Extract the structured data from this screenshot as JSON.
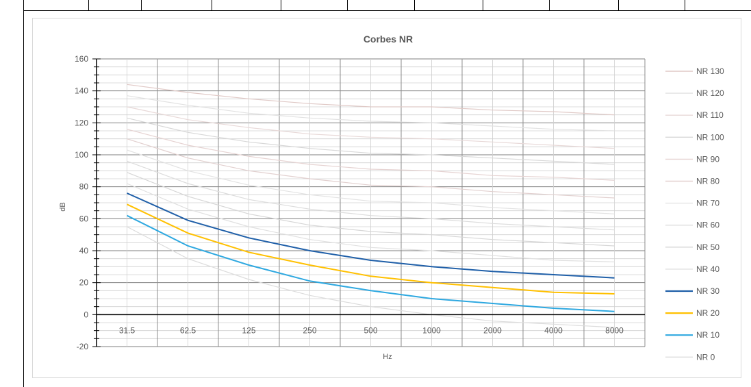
{
  "chart_data": {
    "type": "line",
    "title": "Corbes NR",
    "xlabel": "Hz",
    "ylabel": "dB",
    "categories": [
      "31.5",
      "62.5",
      "125",
      "250",
      "500",
      "1000",
      "2000",
      "4000",
      "8000"
    ],
    "ylim": [
      -20,
      160
    ],
    "yticks": [
      -20,
      0,
      20,
      40,
      60,
      80,
      100,
      120,
      140,
      160
    ],
    "grid": true,
    "legend_position": "right",
    "series": [
      {
        "name": "NR 130",
        "color": "#e0c9c6",
        "values": [
          144,
          139,
          135,
          132,
          130,
          130,
          128,
          127,
          125
        ]
      },
      {
        "name": "NR 120",
        "color": "#e2e2e2",
        "values": [
          137,
          131,
          126,
          123,
          121,
          120,
          118,
          116,
          115
        ]
      },
      {
        "name": "NR 110",
        "color": "#e8d9d8",
        "values": [
          130,
          122,
          117,
          113,
          111,
          110,
          108,
          106,
          104
        ]
      },
      {
        "name": "NR 100",
        "color": "#d8d8d8",
        "values": [
          123,
          114,
          108,
          104,
          101,
          100,
          98,
          96,
          94
        ]
      },
      {
        "name": "NR 90",
        "color": "#e6d3d2",
        "values": [
          116,
          106,
          99,
          94,
          91,
          90,
          87,
          86,
          84
        ]
      },
      {
        "name": "NR 80",
        "color": "#e2d0cf",
        "values": [
          110,
          98,
          90,
          85,
          81,
          80,
          77,
          75,
          73
        ]
      },
      {
        "name": "NR 70",
        "color": "#e3e3e3",
        "values": [
          103,
          90,
          81,
          75,
          71,
          70,
          67,
          65,
          63
        ]
      },
      {
        "name": "NR 60",
        "color": "#dcdcdc",
        "values": [
          96,
          82,
          72,
          66,
          62,
          60,
          57,
          55,
          53
        ]
      },
      {
        "name": "NR 50",
        "color": "#d6d6d6",
        "values": [
          89,
          74,
          63,
          56,
          52,
          50,
          47,
          45,
          43
        ]
      },
      {
        "name": "NR 40",
        "color": "#e0e0e0",
        "values": [
          82,
          66,
          55,
          47,
          42,
          40,
          37,
          34,
          33
        ]
      },
      {
        "name": "NR 30",
        "color": "#1f5fa8",
        "values": [
          76,
          59,
          48,
          40,
          34,
          30,
          27,
          25,
          23
        ]
      },
      {
        "name": "NR 20",
        "color": "#ffc000",
        "values": [
          69,
          51,
          39,
          31,
          24,
          20,
          17,
          14,
          13
        ]
      },
      {
        "name": "NR 10",
        "color": "#2ea8e0",
        "values": [
          62,
          43,
          31,
          21,
          15,
          10,
          7,
          4,
          2
        ]
      },
      {
        "name": "NR 0",
        "color": "#dcdcdc",
        "values": [
          55,
          35,
          22,
          12,
          5,
          0,
          -4,
          -6,
          -8
        ]
      }
    ]
  }
}
